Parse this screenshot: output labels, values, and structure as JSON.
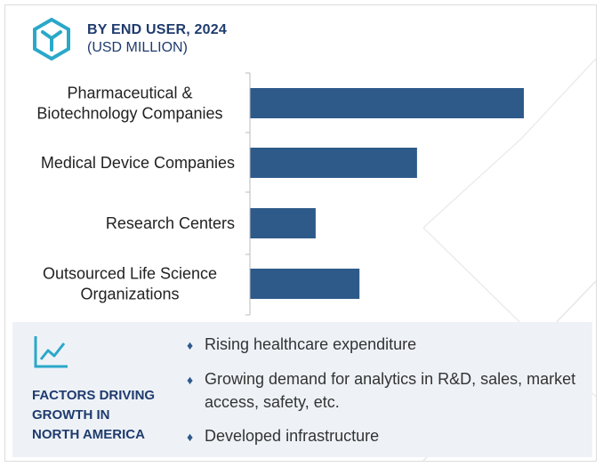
{
  "header": {
    "title": "BY END USER, 2024",
    "subtitle": "(USD MILLION)"
  },
  "colors": {
    "bar": "#2e5a8a",
    "accent": "#1f3b6e",
    "icon": "#2aa8c9"
  },
  "chart_data": {
    "type": "bar",
    "orientation": "horizontal",
    "title": "BY END USER, 2024",
    "subtitle": "(USD MILLION)",
    "categories": [
      [
        "Pharmaceutical &",
        "Biotechnology Companies"
      ],
      [
        "Medical Device Companies"
      ],
      [
        "Research Centers"
      ],
      [
        "Outsourced Life Science",
        "Organizations"
      ]
    ],
    "values": [
      100,
      61,
      24,
      40
    ],
    "xlim": [
      0,
      100
    ],
    "value_axis_visible": false,
    "grid": false,
    "legend": "none"
  },
  "factors": {
    "icon": "trend-up-chart-icon",
    "title_lines": [
      "FACTORS DRIVING",
      "GROWTH IN",
      "NORTH AMERICA"
    ],
    "items": [
      "Rising healthcare expenditure",
      "Growing demand for analytics in R&D, sales, market access, safety, etc.",
      "Developed infrastructure"
    ]
  }
}
